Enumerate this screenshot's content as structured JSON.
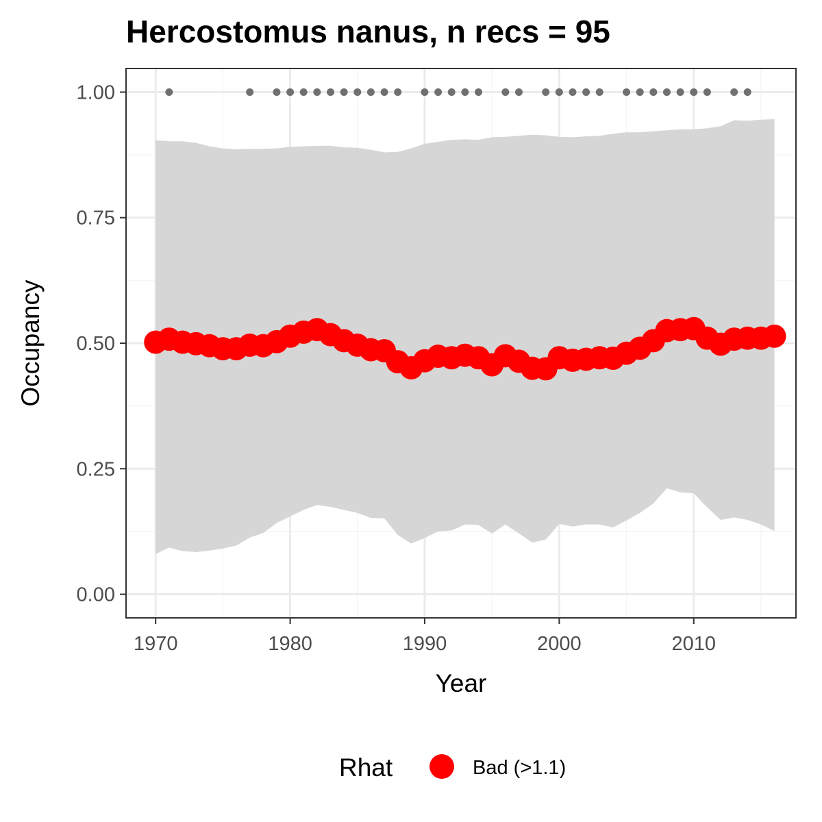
{
  "chart_data": {
    "type": "line",
    "title": "Hercostomus nanus, n recs = 95",
    "xlabel": "Year",
    "ylabel": "Occupancy",
    "xlim": [
      1967.8,
      2017.6
    ],
    "ylim": [
      -0.047,
      1.047
    ],
    "x_ticks": [
      1970,
      1980,
      1990,
      2000,
      2010
    ],
    "y_ticks": [
      0.0,
      0.25,
      0.5,
      0.75,
      1.0
    ],
    "x_tick_labels": [
      "1970",
      "1980",
      "1990",
      "2000",
      "2010"
    ],
    "y_tick_labels": [
      "0.00",
      "0.25",
      "0.50",
      "0.75",
      "1.00"
    ],
    "grid": true,
    "legend": {
      "title": "Rhat",
      "position": "bottom",
      "entries": [
        {
          "label": "Bad (>1.1)",
          "color": "#ff0000"
        }
      ]
    },
    "colors": {
      "mean": "#ff0000",
      "ribbon": "#d6d6d6",
      "records": "#707070",
      "panel_border": "#333333",
      "grid_major": "#ebebeb",
      "grid_minor": "#f5f5f5"
    },
    "series": [
      {
        "type": "points_mean",
        "x": [
          1970,
          1971,
          1972,
          1973,
          1974,
          1975,
          1976,
          1977,
          1978,
          1979,
          1980,
          1981,
          1982,
          1983,
          1984,
          1985,
          1986,
          1987,
          1988,
          1989,
          1990,
          1991,
          1992,
          1993,
          1994,
          1995,
          1996,
          1997,
          1998,
          1999,
          2000,
          2001,
          2002,
          2003,
          2004,
          2005,
          2006,
          2007,
          2008,
          2009,
          2010,
          2011,
          2012,
          2013,
          2014,
          2015,
          2016
        ],
        "values": [
          0.502,
          0.508,
          0.502,
          0.499,
          0.495,
          0.489,
          0.489,
          0.496,
          0.495,
          0.503,
          0.514,
          0.522,
          0.527,
          0.517,
          0.505,
          0.496,
          0.487,
          0.485,
          0.463,
          0.451,
          0.465,
          0.474,
          0.471,
          0.476,
          0.471,
          0.457,
          0.475,
          0.464,
          0.45,
          0.449,
          0.471,
          0.466,
          0.468,
          0.471,
          0.47,
          0.48,
          0.49,
          0.505,
          0.525,
          0.527,
          0.529,
          0.51,
          0.498,
          0.508,
          0.51,
          0.51,
          0.514
        ]
      },
      {
        "type": "ribbon",
        "x": [
          1970,
          1971,
          1972,
          1973,
          1974,
          1975,
          1976,
          1977,
          1978,
          1979,
          1980,
          1981,
          1982,
          1983,
          1984,
          1985,
          1986,
          1987,
          1988,
          1989,
          1990,
          1991,
          1992,
          1993,
          1994,
          1995,
          1996,
          1997,
          1998,
          1999,
          2000,
          2001,
          2002,
          2003,
          2004,
          2005,
          2006,
          2007,
          2008,
          2009,
          2010,
          2011,
          2012,
          2013,
          2014,
          2015,
          2016
        ],
        "upper": [
          0.904,
          0.902,
          0.902,
          0.899,
          0.892,
          0.888,
          0.886,
          0.887,
          0.887,
          0.888,
          0.891,
          0.892,
          0.893,
          0.893,
          0.89,
          0.889,
          0.885,
          0.88,
          0.881,
          0.888,
          0.897,
          0.901,
          0.905,
          0.906,
          0.905,
          0.91,
          0.911,
          0.913,
          0.915,
          0.914,
          0.911,
          0.91,
          0.912,
          0.913,
          0.917,
          0.92,
          0.92,
          0.922,
          0.924,
          0.926,
          0.926,
          0.928,
          0.932,
          0.944,
          0.943,
          0.945,
          0.946
        ],
        "lower": [
          0.08,
          0.093,
          0.086,
          0.084,
          0.087,
          0.091,
          0.097,
          0.113,
          0.122,
          0.142,
          0.155,
          0.168,
          0.178,
          0.174,
          0.168,
          0.162,
          0.152,
          0.151,
          0.118,
          0.101,
          0.112,
          0.125,
          0.127,
          0.139,
          0.138,
          0.121,
          0.139,
          0.121,
          0.103,
          0.109,
          0.14,
          0.135,
          0.139,
          0.139,
          0.133,
          0.147,
          0.162,
          0.181,
          0.211,
          0.203,
          0.201,
          0.173,
          0.148,
          0.153,
          0.148,
          0.139,
          0.126
        ]
      },
      {
        "type": "records",
        "x": [
          1971,
          1977,
          1979,
          1980,
          1981,
          1982,
          1983,
          1984,
          1985,
          1986,
          1987,
          1988,
          1990,
          1991,
          1992,
          1993,
          1994,
          1996,
          1997,
          1999,
          2000,
          2001,
          2002,
          2003,
          2005,
          2006,
          2007,
          2008,
          2009,
          2010,
          2011,
          2013,
          2014
        ],
        "values": [
          1,
          1,
          1,
          1,
          1,
          1,
          1,
          1,
          1,
          1,
          1,
          1,
          1,
          1,
          1,
          1,
          1,
          1,
          1,
          1,
          1,
          1,
          1,
          1,
          1,
          1,
          1,
          1,
          1,
          1,
          1,
          1,
          1
        ]
      }
    ]
  }
}
